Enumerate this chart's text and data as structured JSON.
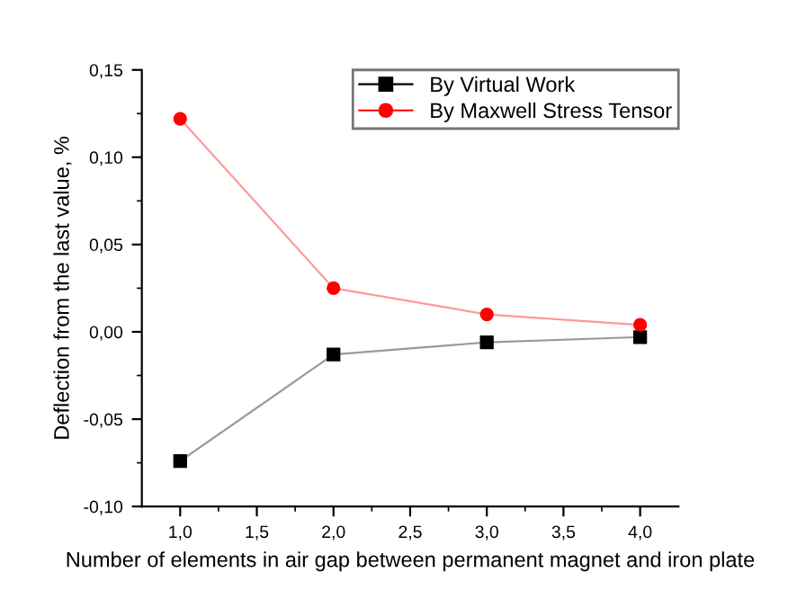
{
  "chart_data": {
    "type": "line",
    "xlabel": "Number of elements in air gap between permanent magnet and iron plate",
    "ylabel": "Deflection from the last value, %",
    "x": [
      1.0,
      2.0,
      3.0,
      4.0
    ],
    "series": [
      {
        "name": "By Virtual Work",
        "color": "#000000",
        "marker": "square",
        "values": [
          -0.074,
          -0.013,
          -0.006,
          -0.003
        ]
      },
      {
        "name": "By Maxwell Stress Tensor",
        "color": "#ff0000",
        "marker": "circle",
        "values": [
          0.122,
          0.025,
          0.01,
          0.004
        ]
      }
    ],
    "xlim": [
      0.75,
      4.25
    ],
    "xticks": [
      {
        "value": 1.0,
        "label": "1,0"
      },
      {
        "value": 1.25,
        "label": null
      },
      {
        "value": 1.5,
        "label": "1,5"
      },
      {
        "value": 1.75,
        "label": null
      },
      {
        "value": 2.0,
        "label": "2,0"
      },
      {
        "value": 2.25,
        "label": null
      },
      {
        "value": 2.5,
        "label": "2,5"
      },
      {
        "value": 2.75,
        "label": null
      },
      {
        "value": 3.0,
        "label": "3,0"
      },
      {
        "value": 3.25,
        "label": null
      },
      {
        "value": 3.5,
        "label": "3,5"
      },
      {
        "value": 3.75,
        "label": null
      },
      {
        "value": 4.0,
        "label": "4,0"
      }
    ],
    "ylim": [
      -0.1,
      0.15
    ],
    "yticks": [
      {
        "value": -0.1,
        "label": "-0,10"
      },
      {
        "value": -0.075,
        "label": null
      },
      {
        "value": -0.05,
        "label": "-0,05"
      },
      {
        "value": -0.025,
        "label": null
      },
      {
        "value": 0.0,
        "label": "0,00"
      },
      {
        "value": 0.025,
        "label": null
      },
      {
        "value": 0.05,
        "label": "0,05"
      },
      {
        "value": 0.075,
        "label": null
      },
      {
        "value": 0.1,
        "label": "0,10"
      },
      {
        "value": 0.125,
        "label": null
      },
      {
        "value": 0.15,
        "label": "0,15"
      }
    ],
    "grid": false,
    "legend": "top right",
    "line_style": "solid"
  }
}
